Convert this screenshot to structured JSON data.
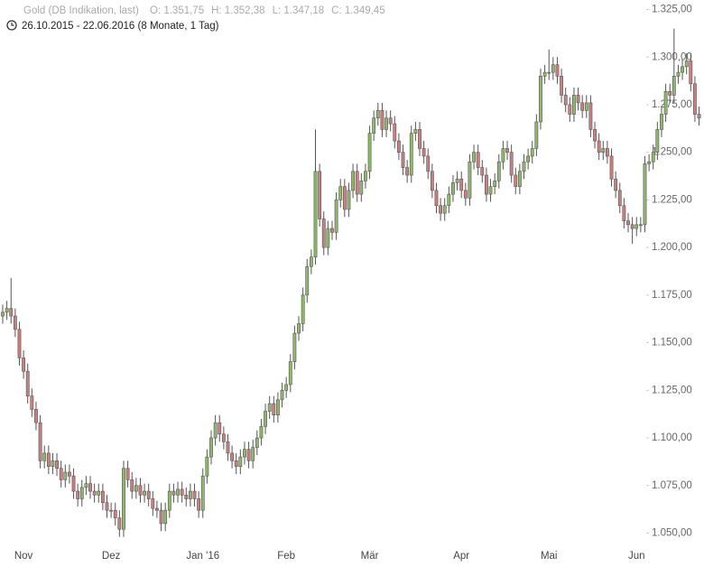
{
  "chart_data": {
    "type": "candlestick",
    "title": "Gold (DB Indikation, last)",
    "quote": [
      "O: 1.351,75",
      "H: 1.352,38",
      "L: 1.347,18",
      "C: 1.349,45"
    ],
    "subtitle": "26.10.2015 - 22.06.2016 (8 Monate, 1 Tag)",
    "categories": [
      null,
      null,
      null,
      null,
      null,
      "Nov",
      null,
      null,
      null,
      null,
      null,
      null,
      null,
      null,
      null,
      null,
      null,
      null,
      null,
      null,
      null,
      null,
      null,
      null,
      null,
      null,
      "Dez",
      null,
      null,
      null,
      null,
      null,
      null,
      null,
      null,
      null,
      null,
      null,
      null,
      null,
      null,
      null,
      null,
      null,
      null,
      null,
      null,
      null,
      "Jan '16",
      null,
      null,
      null,
      null,
      null,
      null,
      null,
      null,
      null,
      null,
      null,
      null,
      null,
      null,
      null,
      null,
      null,
      null,
      null,
      "Feb",
      null,
      null,
      null,
      null,
      null,
      null,
      null,
      null,
      null,
      null,
      null,
      null,
      null,
      null,
      null,
      null,
      null,
      null,
      null,
      "Mär",
      null,
      null,
      null,
      null,
      null,
      null,
      null,
      null,
      null,
      null,
      null,
      null,
      null,
      null,
      null,
      null,
      null,
      null,
      null,
      null,
      null,
      "Apr",
      null,
      null,
      null,
      null,
      null,
      null,
      null,
      null,
      null,
      null,
      null,
      null,
      null,
      null,
      null,
      null,
      null,
      null,
      null,
      null,
      "Mai",
      null,
      null,
      null,
      null,
      null,
      null,
      null,
      null,
      null,
      null,
      null,
      null,
      null,
      null,
      null,
      null,
      null,
      null,
      null,
      null,
      "Jun",
      null,
      null,
      null,
      null,
      null,
      null,
      null,
      null,
      null,
      null,
      null,
      null,
      null,
      null,
      null
    ],
    "open": [
      1164,
      1166,
      1168,
      1164,
      1157,
      1142,
      1135,
      1122,
      1115,
      1108,
      1088,
      1092,
      1085,
      1088,
      1084,
      1078,
      1082,
      1080,
      1072,
      1068,
      1074,
      1076,
      1072,
      1070,
      1072,
      1066,
      1062,
      1062,
      1058,
      1052,
      1084,
      1078,
      1072,
      1075,
      1070,
      1072,
      1068,
      1063,
      1062,
      1055,
      1062,
      1072,
      1070,
      1073,
      1070,
      1068,
      1072,
      1068,
      1062,
      1080,
      1090,
      1100,
      1108,
      1102,
      1098,
      1092,
      1088,
      1085,
      1090,
      1094,
      1088,
      1095,
      1100,
      1106,
      1114,
      1118,
      1112,
      1120,
      1125,
      1128,
      1140,
      1155,
      1160,
      1175,
      1190,
      1195,
      1240,
      1215,
      1200,
      1210,
      1208,
      1225,
      1232,
      1220,
      1230,
      1240,
      1228,
      1235,
      1240,
      1260,
      1268,
      1272,
      1262,
      1268,
      1265,
      1256,
      1250,
      1242,
      1238,
      1260,
      1262,
      1252,
      1248,
      1240,
      1230,
      1222,
      1218,
      1222,
      1228,
      1234,
      1236,
      1230,
      1226,
      1245,
      1250,
      1242,
      1238,
      1228,
      1232,
      1235,
      1245,
      1252,
      1250,
      1238,
      1232,
      1240,
      1245,
      1248,
      1252,
      1266,
      1290,
      1292,
      1292,
      1296,
      1290,
      1280,
      1275,
      1270,
      1280,
      1276,
      1272,
      1276,
      1262,
      1256,
      1250,
      1252,
      1248,
      1236,
      1230,
      1222,
      1214,
      1212,
      1210,
      1212,
      1212,
      1244,
      1245,
      1250,
      1262,
      1270,
      1282,
      1280,
      1290,
      1292,
      1295,
      1298,
      1286,
      1270
    ],
    "high": [
      1170,
      1172,
      1184,
      1168,
      1161,
      1146,
      1139,
      1126,
      1119,
      1112,
      1096,
      1096,
      1092,
      1092,
      1088,
      1086,
      1086,
      1084,
      1076,
      1078,
      1080,
      1080,
      1076,
      1076,
      1076,
      1070,
      1066,
      1066,
      1062,
      1088,
      1088,
      1082,
      1079,
      1079,
      1076,
      1076,
      1072,
      1067,
      1066,
      1066,
      1076,
      1076,
      1077,
      1077,
      1074,
      1076,
      1076,
      1072,
      1084,
      1094,
      1104,
      1112,
      1112,
      1106,
      1102,
      1096,
      1092,
      1094,
      1098,
      1098,
      1099,
      1104,
      1110,
      1118,
      1122,
      1122,
      1124,
      1129,
      1132,
      1144,
      1159,
      1164,
      1179,
      1194,
      1199,
      1262,
      1244,
      1219,
      1214,
      1214,
      1229,
      1236,
      1236,
      1234,
      1244,
      1244,
      1239,
      1244,
      1264,
      1272,
      1276,
      1276,
      1272,
      1272,
      1269,
      1260,
      1254,
      1246,
      1264,
      1266,
      1266,
      1256,
      1252,
      1244,
      1234,
      1226,
      1226,
      1232,
      1238,
      1240,
      1240,
      1234,
      1249,
      1254,
      1254,
      1246,
      1242,
      1236,
      1239,
      1249,
      1256,
      1256,
      1254,
      1242,
      1244,
      1249,
      1252,
      1256,
      1270,
      1294,
      1296,
      1304,
      1300,
      1300,
      1294,
      1284,
      1279,
      1284,
      1284,
      1280,
      1280,
      1280,
      1266,
      1260,
      1256,
      1256,
      1252,
      1240,
      1234,
      1226,
      1218,
      1216,
      1216,
      1216,
      1248,
      1249,
      1254,
      1266,
      1274,
      1286,
      1286,
      1315,
      1296,
      1299,
      1302,
      1302,
      1290,
      1274
    ],
    "low": [
      1160,
      1162,
      1160,
      1153,
      1138,
      1131,
      1118,
      1111,
      1104,
      1084,
      1084,
      1081,
      1081,
      1080,
      1074,
      1074,
      1076,
      1068,
      1064,
      1064,
      1070,
      1068,
      1066,
      1066,
      1062,
      1058,
      1058,
      1054,
      1048,
      1048,
      1074,
      1068,
      1068,
      1066,
      1066,
      1064,
      1059,
      1058,
      1051,
      1051,
      1058,
      1066,
      1066,
      1066,
      1064,
      1064,
      1064,
      1058,
      1058,
      1076,
      1086,
      1096,
      1098,
      1094,
      1088,
      1084,
      1081,
      1081,
      1086,
      1084,
      1084,
      1091,
      1096,
      1102,
      1110,
      1108,
      1108,
      1116,
      1121,
      1124,
      1136,
      1151,
      1156,
      1171,
      1186,
      1191,
      1211,
      1196,
      1196,
      1204,
      1204,
      1221,
      1216,
      1216,
      1226,
      1224,
      1224,
      1231,
      1236,
      1256,
      1264,
      1258,
      1258,
      1261,
      1252,
      1246,
      1238,
      1234,
      1234,
      1256,
      1248,
      1244,
      1236,
      1226,
      1218,
      1214,
      1214,
      1218,
      1224,
      1230,
      1226,
      1222,
      1222,
      1241,
      1238,
      1234,
      1224,
      1224,
      1228,
      1231,
      1241,
      1246,
      1234,
      1228,
      1228,
      1236,
      1241,
      1244,
      1248,
      1262,
      1286,
      1288,
      1288,
      1286,
      1276,
      1271,
      1266,
      1266,
      1272,
      1268,
      1268,
      1258,
      1252,
      1246,
      1246,
      1244,
      1232,
      1226,
      1218,
      1210,
      1208,
      1202,
      1206,
      1208,
      1208,
      1240,
      1241,
      1246,
      1258,
      1266,
      1276,
      1276,
      1286,
      1288,
      1291,
      1282,
      1266,
      1264
    ],
    "close": [
      1166,
      1168,
      1164,
      1157,
      1142,
      1135,
      1122,
      1115,
      1108,
      1088,
      1092,
      1085,
      1088,
      1084,
      1078,
      1082,
      1080,
      1072,
      1068,
      1074,
      1076,
      1072,
      1070,
      1072,
      1066,
      1062,
      1062,
      1058,
      1052,
      1084,
      1078,
      1072,
      1075,
      1070,
      1072,
      1068,
      1063,
      1062,
      1055,
      1062,
      1072,
      1070,
      1073,
      1070,
      1068,
      1072,
      1068,
      1062,
      1080,
      1090,
      1100,
      1108,
      1102,
      1098,
      1092,
      1088,
      1085,
      1090,
      1094,
      1088,
      1095,
      1100,
      1106,
      1114,
      1118,
      1112,
      1120,
      1125,
      1128,
      1140,
      1155,
      1160,
      1175,
      1190,
      1195,
      1240,
      1215,
      1200,
      1210,
      1208,
      1225,
      1232,
      1220,
      1230,
      1240,
      1228,
      1235,
      1240,
      1260,
      1268,
      1272,
      1262,
      1268,
      1265,
      1256,
      1250,
      1242,
      1238,
      1260,
      1262,
      1252,
      1248,
      1240,
      1230,
      1222,
      1218,
      1222,
      1228,
      1234,
      1236,
      1230,
      1226,
      1245,
      1250,
      1242,
      1238,
      1228,
      1232,
      1235,
      1245,
      1252,
      1250,
      1238,
      1232,
      1240,
      1245,
      1248,
      1252,
      1266,
      1290,
      1292,
      1292,
      1296,
      1290,
      1280,
      1275,
      1270,
      1280,
      1276,
      1272,
      1276,
      1262,
      1256,
      1250,
      1252,
      1248,
      1236,
      1230,
      1222,
      1214,
      1212,
      1210,
      1212,
      1212,
      1244,
      1245,
      1250,
      1262,
      1270,
      1282,
      1280,
      1290,
      1292,
      1295,
      1298,
      1286,
      1270,
      1268
    ],
    "up_color": "#8fb86a",
    "down_color": "#c98080",
    "ylim": [
      1045,
      1330
    ],
    "yticks": [
      {
        "value": 1050,
        "label": "1.050,00"
      },
      {
        "value": 1075,
        "label": "1.075,00"
      },
      {
        "value": 1100,
        "label": "1.100,00"
      },
      {
        "value": 1125,
        "label": "1.125,00"
      },
      {
        "value": 1150,
        "label": "1.150,00"
      },
      {
        "value": 1175,
        "label": "1.175,00"
      },
      {
        "value": 1200,
        "label": "1.200,00"
      },
      {
        "value": 1225,
        "label": "1.225,00"
      },
      {
        "value": 1250,
        "label": "1.250,00"
      },
      {
        "value": 1275,
        "label": "1.275,00"
      },
      {
        "value": 1300,
        "label": "1.300,00"
      },
      {
        "value": 1325,
        "label": "1.325,00"
      }
    ],
    "grid": false
  }
}
